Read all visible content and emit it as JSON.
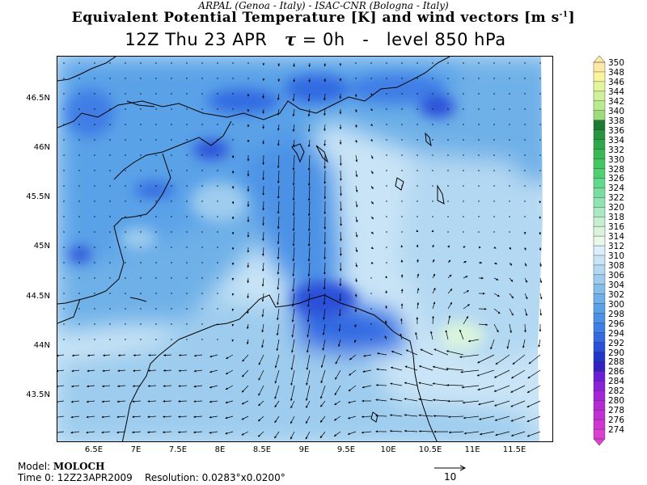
{
  "header": {
    "credit": "ARPAL (Genoa - Italy)   -   ISAC-CNR (Bologna - Italy)",
    "title_main": "Equivalent Potential Temperature [K] and wind vectors [m s",
    "title_sup": "-1",
    "title_close": "]",
    "sub_time": "12Z Thu 23 APR",
    "sub_tau_symbol": "τ",
    "sub_tau_value": "= 0h",
    "sub_dash": "-",
    "sub_level": "level 850 hPa"
  },
  "map": {
    "extent": {
      "lon": [
        6.0,
        11.9
      ],
      "lat": [
        43.05,
        46.95
      ]
    },
    "lat_ticks": [
      "46.5N",
      "46N",
      "45.5N",
      "45N",
      "44.5N",
      "44N",
      "43.5N"
    ],
    "lon_ticks": [
      "6.5E",
      "7E",
      "7.5E",
      "8E",
      "8.5E",
      "9E",
      "9.5E",
      "10E",
      "10.5E",
      "11E",
      "11.5E"
    ]
  },
  "colorbar": {
    "labels": [
      "350",
      "348",
      "346",
      "344",
      "342",
      "340",
      "338",
      "336",
      "334",
      "332",
      "330",
      "328",
      "326",
      "324",
      "322",
      "320",
      "318",
      "316",
      "314",
      "312",
      "310",
      "308",
      "306",
      "304",
      "302",
      "300",
      "298",
      "296",
      "294",
      "292",
      "290",
      "288",
      "286",
      "284",
      "282",
      "280",
      "278",
      "276",
      "274"
    ],
    "colors": {
      "350": "#fde9a6",
      "348": "#f9f59c",
      "346": "#e3f59a",
      "344": "#cff19a",
      "342": "#b8ea8e",
      "340": "#9ddb7d",
      "338": "#1e7a33",
      "336": "#289640",
      "334": "#2fa74b",
      "332": "#38b955",
      "330": "#43c763",
      "328": "#50d070",
      "326": "#60d98a",
      "324": "#78dea0",
      "322": "#92e3b2",
      "320": "#aaeac2",
      "318": "#c6efcf",
      "316": "#daf4dc",
      "314": "#eaf8ea",
      "312": "#dceefa",
      "310": "#c9e4f6",
      "308": "#b3d8f2",
      "306": "#9dccee",
      "304": "#86beea",
      "302": "#6eb0e8",
      "300": "#5aa2e8",
      "298": "#4b91e6",
      "296": "#3f7ee6",
      "294": "#336ae2",
      "292": "#2a50d8",
      "290": "#1f36c8",
      "288": "#3520c2",
      "286": "#6a1fd6",
      "284": "#8a22d8",
      "282": "#a326d7",
      "280": "#b32ad5",
      "278": "#c22fd4",
      "276": "#cf36d1",
      "274": "#dd40cf"
    }
  },
  "footer": {
    "model_label": "Model:",
    "model_value": "MOLOCH",
    "time_label": "Time 0:",
    "time_value": "12Z23APR2009",
    "resolution_label": "Resolution:",
    "resolution_value": "0.0283°x0.0200°",
    "reference_vector": "10"
  }
}
